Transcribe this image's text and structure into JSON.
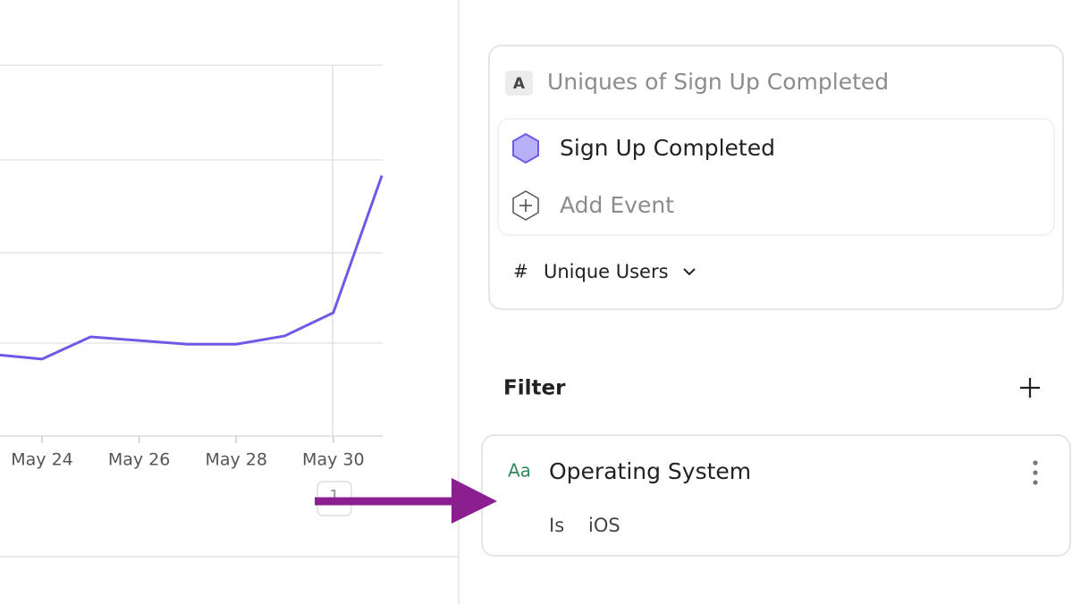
{
  "chart_data": {
    "type": "line",
    "categories": [
      null,
      "May 24",
      null,
      "May 26",
      null,
      "May 28",
      null,
      "May 30",
      null
    ],
    "values": [
      0.88,
      0.83,
      1.07,
      1.03,
      0.99,
      0.99,
      1.08,
      1.33,
      2.81
    ],
    "color": "#6e5ae6",
    "ylim": [
      0,
      4
    ]
  },
  "pagination": {
    "page": "1"
  },
  "metric": {
    "badge": "A",
    "title": "Uniques of Sign Up Completed",
    "event": "Sign Up Completed",
    "add_event": "Add Event",
    "measure_icon": "#",
    "measure": "Unique Users"
  },
  "filter": {
    "heading": "Filter",
    "type_icon": "Aa",
    "property": "Operating System",
    "operator": "Is",
    "value": "iOS"
  }
}
